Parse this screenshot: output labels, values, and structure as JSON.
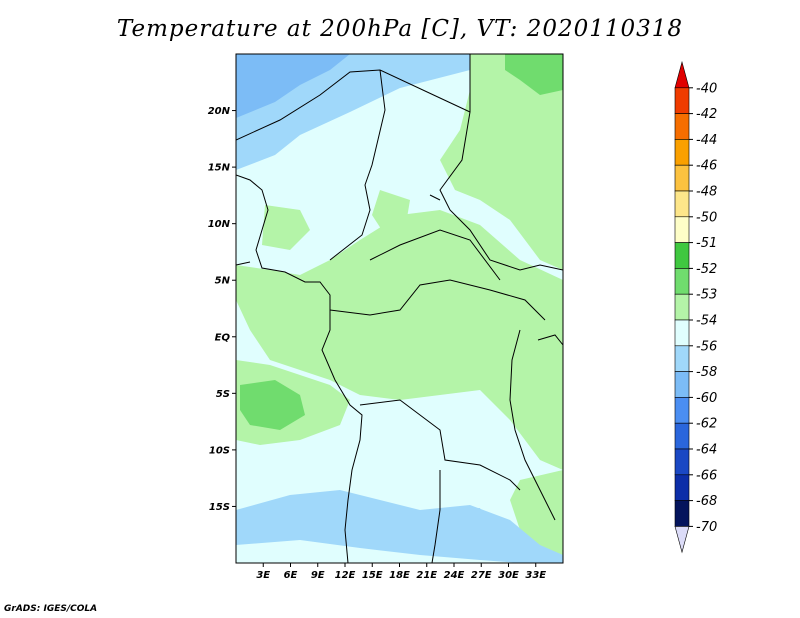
{
  "title": "Temperature at 200hPa [C], VT: 2020110318",
  "credit": "GrADS: IGES/COLA",
  "map": {
    "lon_range": [
      0,
      36
    ],
    "lat_range": [
      -20,
      25
    ],
    "lat_ticks": [
      {
        "value": 20,
        "label": "20N"
      },
      {
        "value": 15,
        "label": "15N"
      },
      {
        "value": 10,
        "label": "10N"
      },
      {
        "value": 5,
        "label": "5N"
      },
      {
        "value": 0,
        "label": "EQ"
      },
      {
        "value": -5,
        "label": "5S"
      },
      {
        "value": -10,
        "label": "10S"
      },
      {
        "value": -15,
        "label": "15S"
      }
    ],
    "lon_ticks": [
      {
        "value": 3,
        "label": "3E"
      },
      {
        "value": 6,
        "label": "6E"
      },
      {
        "value": 9,
        "label": "9E"
      },
      {
        "value": 12,
        "label": "12E"
      },
      {
        "value": 15,
        "label": "15E"
      },
      {
        "value": 18,
        "label": "18E"
      },
      {
        "value": 21,
        "label": "21E"
      },
      {
        "value": 24,
        "label": "24E"
      },
      {
        "value": 27,
        "label": "27E"
      },
      {
        "value": 30,
        "label": "30E"
      },
      {
        "value": 33,
        "label": "33E"
      }
    ]
  },
  "colorbar": {
    "labels": [
      "-40",
      "-42",
      "-44",
      "-46",
      "-48",
      "-50",
      "-51",
      "-52",
      "-53",
      "-54",
      "-56",
      "-58",
      "-60",
      "-62",
      "-64",
      "-66",
      "-68",
      "-70"
    ],
    "colors": [
      "#e00000",
      "#f03c00",
      "#f66e00",
      "#faa000",
      "#fcc240",
      "#fde68a",
      "#fefec8",
      "#40c840",
      "#70dc6e",
      "#b4f4a8",
      "#e0fefe",
      "#a0d8fa",
      "#7cbcf6",
      "#4b8ef2",
      "#2a66dc",
      "#1a48c4",
      "#0c2ea8",
      "#04145c",
      "#dcdcf8"
    ]
  }
}
